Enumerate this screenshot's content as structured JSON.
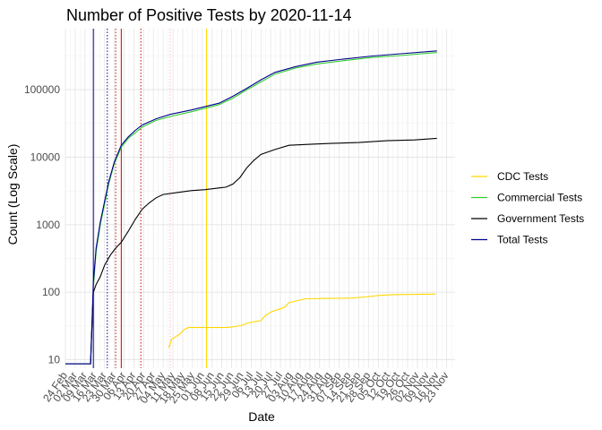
{
  "chart_data": {
    "type": "line",
    "title": "Number of Positive Tests by  2020-11-14",
    "xlabel": "Date",
    "ylabel": "Count (Log Scale)",
    "y_scale": "log10",
    "ylim": [
      7.5,
      800000
    ],
    "y_ticks": [
      10,
      100,
      1000,
      10000,
      100000
    ],
    "y_tick_labels": [
      "10",
      "100",
      "1000",
      "10000",
      "100000"
    ],
    "x_domain": [
      0,
      279
    ],
    "x_ticks": [
      {
        "day": 0,
        "label": "24 Feb"
      },
      {
        "day": 7,
        "label": "02 Mar"
      },
      {
        "day": 14,
        "label": "09 Mar"
      },
      {
        "day": 21,
        "label": "16 Mar"
      },
      {
        "day": 28,
        "label": "23 Mar"
      },
      {
        "day": 35,
        "label": "30 Mar"
      },
      {
        "day": 42,
        "label": "06 Apr"
      },
      {
        "day": 49,
        "label": "13 Apr"
      },
      {
        "day": 56,
        "label": "20 Apr"
      },
      {
        "day": 63,
        "label": "27 Apr"
      },
      {
        "day": 70,
        "label": "04 May"
      },
      {
        "day": 77,
        "label": "11 May"
      },
      {
        "day": 84,
        "label": "18 May"
      },
      {
        "day": 91,
        "label": "25 May"
      },
      {
        "day": 98,
        "label": "01 Jun"
      },
      {
        "day": 105,
        "label": "08 Jun"
      },
      {
        "day": 112,
        "label": "15 Jun"
      },
      {
        "day": 119,
        "label": "22 Jun"
      },
      {
        "day": 126,
        "label": "29 Jun"
      },
      {
        "day": 133,
        "label": "06 Jul"
      },
      {
        "day": 140,
        "label": "13 Jul"
      },
      {
        "day": 147,
        "label": "20 Jul"
      },
      {
        "day": 154,
        "label": "27 Jul"
      },
      {
        "day": 161,
        "label": "03 Aug"
      },
      {
        "day": 168,
        "label": "10 Aug"
      },
      {
        "day": 175,
        "label": "17 Aug"
      },
      {
        "day": 182,
        "label": "24 Aug"
      },
      {
        "day": 189,
        "label": "31 Aug"
      },
      {
        "day": 196,
        "label": "07 Sep"
      },
      {
        "day": 203,
        "label": "14 Sep"
      },
      {
        "day": 210,
        "label": "21 Sep"
      },
      {
        "day": 217,
        "label": "28 Sep"
      },
      {
        "day": 224,
        "label": "05 Oct"
      },
      {
        "day": 231,
        "label": "12 Oct"
      },
      {
        "day": 238,
        "label": "19 Oct"
      },
      {
        "day": 245,
        "label": "26 Oct"
      },
      {
        "day": 252,
        "label": "02 Nov"
      },
      {
        "day": 259,
        "label": "09 Nov"
      },
      {
        "day": 266,
        "label": "16 Nov"
      },
      {
        "day": 273,
        "label": "23 Nov"
      }
    ],
    "x_unit_note": "days since 24 Feb 2020",
    "vertical_markers": [
      {
        "day": 20,
        "color": "#00008b",
        "style": "solid"
      },
      {
        "day": 30,
        "color": "#00008b",
        "style": "dotted"
      },
      {
        "day": 36,
        "color": "#cc0000",
        "style": "dotted"
      },
      {
        "day": 40,
        "color": "#cc0000",
        "style": "solid"
      },
      {
        "day": 54,
        "color": "#cc0000",
        "style": "dotted"
      },
      {
        "day": 75,
        "color": "#ffb6c1",
        "style": "dotted"
      },
      {
        "day": 101,
        "color": "#ffd700",
        "style": "solid"
      }
    ],
    "series": [
      {
        "name": "CDC Tests",
        "color": "#ffd700",
        "points": [
          [
            74,
            15
          ],
          [
            76,
            20
          ],
          [
            79,
            22
          ],
          [
            82,
            24
          ],
          [
            85,
            28
          ],
          [
            88,
            30
          ],
          [
            100,
            30
          ],
          [
            115,
            30
          ],
          [
            122,
            31
          ],
          [
            128,
            33
          ],
          [
            130,
            35
          ],
          [
            140,
            38
          ],
          [
            143,
            45
          ],
          [
            148,
            52
          ],
          [
            152,
            55
          ],
          [
            157,
            60
          ],
          [
            160,
            70
          ],
          [
            166,
            75
          ],
          [
            172,
            80
          ],
          [
            190,
            81
          ],
          [
            205,
            82
          ],
          [
            215,
            85
          ],
          [
            225,
            90
          ],
          [
            235,
            92
          ],
          [
            250,
            93
          ],
          [
            265,
            94
          ]
        ]
      },
      {
        "name": "Commercial Tests",
        "color": "#32cd32",
        "points": [
          [
            0,
            8.7
          ],
          [
            14,
            8.7
          ],
          [
            18,
            8.7
          ],
          [
            20,
            120
          ],
          [
            22,
            400
          ],
          [
            25,
            1000
          ],
          [
            28,
            2000
          ],
          [
            31,
            4000
          ],
          [
            35,
            8000
          ],
          [
            40,
            14000
          ],
          [
            45,
            19000
          ],
          [
            50,
            23000
          ],
          [
            55,
            28000
          ],
          [
            65,
            35000
          ],
          [
            75,
            40000
          ],
          [
            90,
            47000
          ],
          [
            110,
            60000
          ],
          [
            120,
            75000
          ],
          [
            130,
            100000
          ],
          [
            140,
            130000
          ],
          [
            150,
            170000
          ],
          [
            165,
            210000
          ],
          [
            180,
            240000
          ],
          [
            200,
            270000
          ],
          [
            220,
            300000
          ],
          [
            240,
            320000
          ],
          [
            266,
            355000
          ]
        ]
      },
      {
        "name": "Government Tests",
        "color": "#000000",
        "points": [
          [
            0,
            8.7
          ],
          [
            14,
            8.7
          ],
          [
            18,
            8.7
          ],
          [
            20,
            100
          ],
          [
            22,
            130
          ],
          [
            25,
            170
          ],
          [
            28,
            250
          ],
          [
            32,
            350
          ],
          [
            36,
            450
          ],
          [
            40,
            550
          ],
          [
            45,
            800
          ],
          [
            50,
            1200
          ],
          [
            55,
            1700
          ],
          [
            60,
            2100
          ],
          [
            65,
            2500
          ],
          [
            70,
            2800
          ],
          [
            80,
            3000
          ],
          [
            90,
            3200
          ],
          [
            100,
            3300
          ],
          [
            110,
            3500
          ],
          [
            115,
            3600
          ],
          [
            120,
            4000
          ],
          [
            125,
            5000
          ],
          [
            130,
            7000
          ],
          [
            135,
            9000
          ],
          [
            140,
            11000
          ],
          [
            150,
            13000
          ],
          [
            160,
            15000
          ],
          [
            175,
            15500
          ],
          [
            190,
            16000
          ],
          [
            210,
            16500
          ],
          [
            230,
            17500
          ],
          [
            250,
            18000
          ],
          [
            266,
            19000
          ]
        ]
      },
      {
        "name": "Total Tests",
        "color": "#00008b",
        "points": [
          [
            0,
            8.7
          ],
          [
            14,
            8.7
          ],
          [
            18,
            8.7
          ],
          [
            20,
            140
          ],
          [
            22,
            450
          ],
          [
            25,
            1100
          ],
          [
            28,
            2200
          ],
          [
            31,
            4300
          ],
          [
            35,
            8500
          ],
          [
            40,
            15000
          ],
          [
            45,
            20000
          ],
          [
            50,
            25000
          ],
          [
            55,
            30000
          ],
          [
            65,
            37000
          ],
          [
            75,
            43000
          ],
          [
            90,
            50000
          ],
          [
            110,
            63000
          ],
          [
            120,
            80000
          ],
          [
            130,
            105000
          ],
          [
            140,
            140000
          ],
          [
            150,
            180000
          ],
          [
            165,
            220000
          ],
          [
            180,
            255000
          ],
          [
            200,
            285000
          ],
          [
            220,
            315000
          ],
          [
            240,
            340000
          ],
          [
            266,
            375000
          ]
        ]
      }
    ],
    "legend": {
      "position": "right",
      "entries": [
        {
          "label": "CDC Tests",
          "color": "#ffd700"
        },
        {
          "label": "Commercial Tests",
          "color": "#32cd32"
        },
        {
          "label": "Government Tests",
          "color": "#000000"
        },
        {
          "label": "Total Tests",
          "color": "#00008b"
        }
      ]
    }
  }
}
